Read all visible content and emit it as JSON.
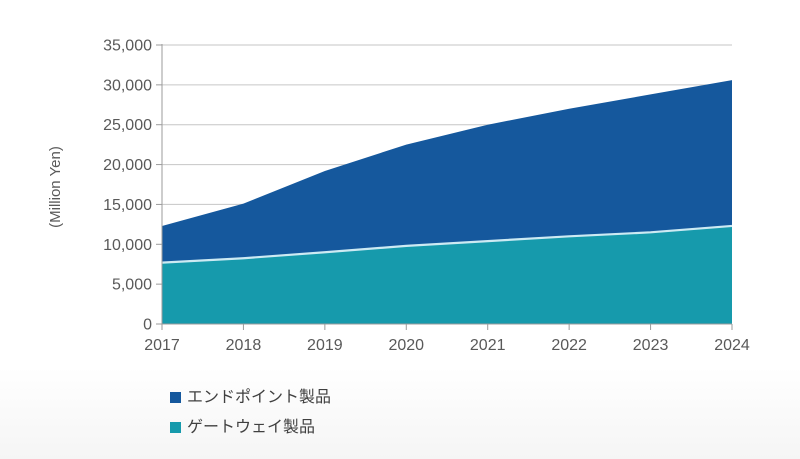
{
  "chart_data": {
    "type": "area",
    "stacked": true,
    "title": "",
    "xlabel": "",
    "ylabel": "(Million Yen)",
    "x": [
      "2017",
      "2018",
      "2019",
      "2020",
      "2021",
      "2022",
      "2023",
      "2024"
    ],
    "series": [
      {
        "name": "エンドポイント製品",
        "color": "#15589d",
        "values": [
          4600,
          6850,
          10200,
          12700,
          14600,
          16000,
          17300,
          18300
        ]
      },
      {
        "name": "ゲートウェイ製品",
        "color": "#169aac",
        "values": [
          7700,
          8250,
          9000,
          9800,
          10400,
          11000,
          11500,
          12300
        ]
      }
    ],
    "stacked_totals": [
      12300,
      15100,
      19200,
      22500,
      25000,
      27000,
      28800,
      30600
    ],
    "ylim": [
      0,
      35000
    ],
    "ytick_step": 5000,
    "ytick_labels": [
      "0",
      "5,000",
      "10,000",
      "15,000",
      "20,000",
      "25,000",
      "30,000",
      "35,000"
    ],
    "grid": true,
    "legend_position": "bottom-left",
    "colors": {
      "separator_line": "#cdeaf3",
      "gridline": "#c6c6c6",
      "axis": "#9b9b9b",
      "tick_text": "#595959",
      "legend_text": "#404040"
    }
  }
}
